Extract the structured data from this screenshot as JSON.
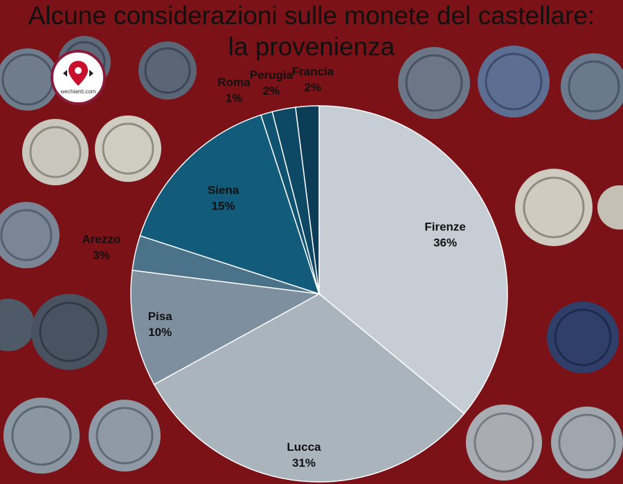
{
  "title_line1": "Alcune considerazioni sulle monete del castellare:",
  "title_line2": "la provenienza",
  "logo_text": "wechianti.com",
  "colors": {
    "background": "#7a1218",
    "label_color": "#111111",
    "slice_stroke": "#ffffff"
  },
  "chart_data": {
    "type": "pie",
    "title": "",
    "slices": [
      {
        "label": "Firenze",
        "value": 36,
        "value_label": "36%",
        "color": "#c7cdd4"
      },
      {
        "label": "Lucca",
        "value": 31,
        "value_label": "31%",
        "color": "#aab4bd"
      },
      {
        "label": "Pisa",
        "value": 10,
        "value_label": "10%",
        "color": "#7e90a0"
      },
      {
        "label": "Arezzo",
        "value": 3,
        "value_label": "3%",
        "color": "#4a7389"
      },
      {
        "label": "Siena",
        "value": 15,
        "value_label": "15%",
        "color": "#135b7a"
      },
      {
        "label": "Roma",
        "value": 1,
        "value_label": "1%",
        "color": "#0f5371"
      },
      {
        "label": "Perugia",
        "value": 2,
        "value_label": "2%",
        "color": "#0d4965"
      },
      {
        "label": "Francia",
        "value": 2,
        "value_label": "2%",
        "color": "#0b3d56"
      }
    ]
  }
}
